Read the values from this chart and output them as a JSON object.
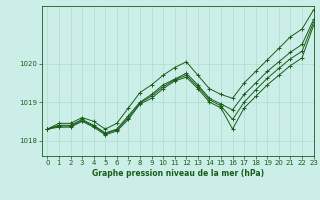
{
  "title": "Graphe pression niveau de la mer (hPa)",
  "background_color": "#cceee8",
  "grid_color": "#aaddcc",
  "line_color": "#1a5c1a",
  "xlim": [
    -0.5,
    23
  ],
  "ylim": [
    1017.6,
    1021.5
  ],
  "yticks": [
    1018,
    1019,
    1020
  ],
  "xticks": [
    0,
    1,
    2,
    3,
    4,
    5,
    6,
    7,
    8,
    9,
    10,
    11,
    12,
    13,
    14,
    15,
    16,
    17,
    18,
    19,
    20,
    21,
    22,
    23
  ],
  "series": [
    [
      1018.3,
      1018.35,
      1018.35,
      1018.5,
      1018.35,
      1018.15,
      1018.25,
      1018.55,
      1018.95,
      1019.1,
      1019.35,
      1019.55,
      1019.65,
      1019.35,
      1019.0,
      1018.85,
      1018.3,
      1018.85,
      1019.15,
      1019.45,
      1019.7,
      1019.95,
      1020.15,
      1021.0
    ],
    [
      1018.3,
      1018.4,
      1018.4,
      1018.55,
      1018.4,
      1018.2,
      1018.3,
      1018.65,
      1019.0,
      1019.2,
      1019.45,
      1019.6,
      1019.75,
      1019.45,
      1019.1,
      1018.95,
      1018.8,
      1019.2,
      1019.5,
      1019.8,
      1020.05,
      1020.3,
      1020.5,
      1021.15
    ],
    [
      1018.3,
      1018.45,
      1018.45,
      1018.6,
      1018.5,
      1018.3,
      1018.45,
      1018.85,
      1019.25,
      1019.45,
      1019.7,
      1019.9,
      1020.05,
      1019.7,
      1019.35,
      1019.2,
      1019.1,
      1019.5,
      1019.8,
      1020.1,
      1020.4,
      1020.7,
      1020.9,
      1021.4
    ],
    [
      1018.3,
      1018.38,
      1018.38,
      1018.52,
      1018.38,
      1018.18,
      1018.28,
      1018.6,
      1018.98,
      1019.16,
      1019.4,
      1019.58,
      1019.7,
      1019.4,
      1019.06,
      1018.9,
      1018.55,
      1019.0,
      1019.32,
      1019.62,
      1019.88,
      1020.13,
      1020.32,
      1021.08
    ]
  ]
}
